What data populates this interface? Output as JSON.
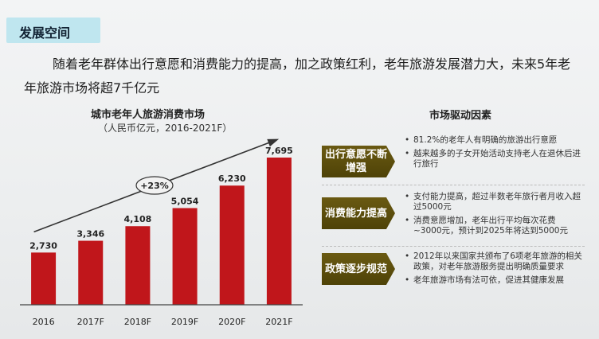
{
  "section_title": "发展空间",
  "intro": "随着老年群体出行意愿和消费能力的提高，加之政策红利，老年旅游发展潜力大，未来5年老年旅游市场将超7千亿元",
  "chart_data": {
    "type": "bar",
    "title": "城市老年人旅游消费市场",
    "subtitle": "（人民币亿元，2016-2021F）",
    "categories": [
      "2016",
      "2017F",
      "2018F",
      "2019F",
      "2020F",
      "2021F"
    ],
    "values": [
      2730,
      3346,
      4108,
      5054,
      6230,
      7695
    ],
    "value_labels": [
      "2,730",
      "3,346",
      "4,108",
      "5,054",
      "6,230",
      "7,695"
    ],
    "growth_annotation": "+23%",
    "ylim": [
      0,
      8000
    ],
    "bar_color": "#c0161b",
    "grid": false
  },
  "drivers": {
    "title": "市场驱动因素",
    "items": [
      {
        "label_line1": "出行意愿不断",
        "label_line2": "增强",
        "points": [
          "81.2%的老年人有明确的旅游出行意愿",
          "越来越多的子女开始活动支持老人在退休后进行旅行"
        ]
      },
      {
        "label_line1": "消费能力提高",
        "label_line2": "",
        "points": [
          "支付能力提高，超过半数老年旅行者月收入超过5000元",
          "消费意愿增加，老年出行平均每次花费~3000元，预计到2025年将达到5000元"
        ]
      },
      {
        "label_line1": "政策逐步规范",
        "label_line2": "",
        "points": [
          "2012年以来国家共颁布了6项老年旅游的相关政策，对老年旅游服务提出明确质量要求",
          "老年旅游市场有法可依，促进其健康发展"
        ]
      }
    ]
  }
}
